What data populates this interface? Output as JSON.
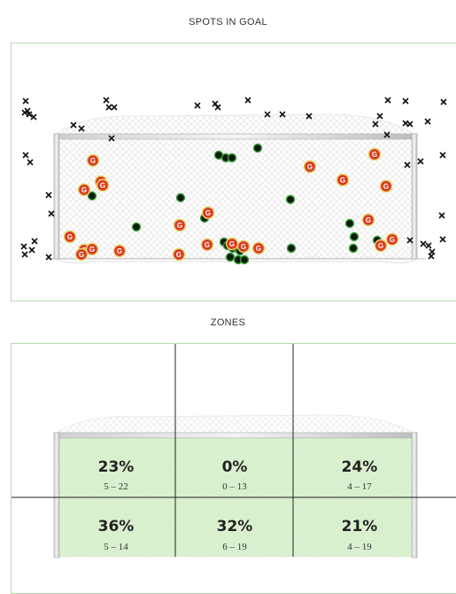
{
  "spots": {
    "title": "SPOTS IN GOAL",
    "goal_label": "G",
    "colors": {
      "goal": "#d93a1e",
      "goal_ring": "#e8d26b",
      "saved": "#0d1a0d",
      "saved_ring": "#3fa13a",
      "miss": "#111111"
    }
  },
  "zones": {
    "title": "ZONES",
    "cells": [
      {
        "pct": "23%",
        "range": "5 – 22"
      },
      {
        "pct": "0%",
        "range": "0 – 13"
      },
      {
        "pct": "24%",
        "range": "4 – 17"
      },
      {
        "pct": "36%",
        "range": "5 – 14"
      },
      {
        "pct": "32%",
        "range": "6 – 19"
      },
      {
        "pct": "21%",
        "range": "4 – 19"
      }
    ],
    "colors": {
      "fill": "#d4efc7",
      "line": "#222222"
    }
  }
}
